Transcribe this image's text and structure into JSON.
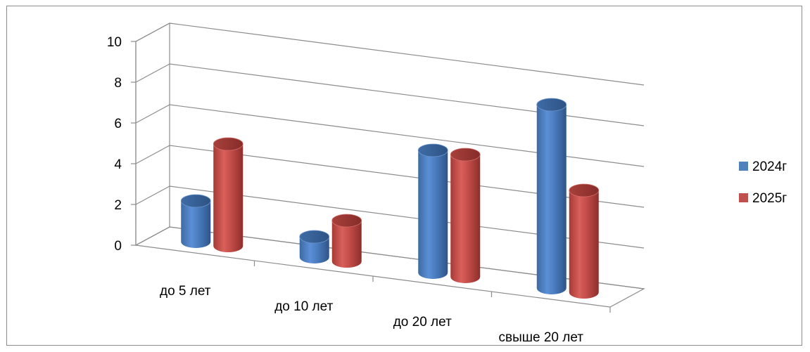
{
  "chart_data": {
    "type": "bar",
    "categories": [
      "до 5 лет",
      "до 10 лет",
      "до 20 лет",
      "свыше 20 лет"
    ],
    "series": [
      {
        "name": "2024г",
        "values": [
          2,
          1,
          6,
          9
        ],
        "color": "#4f81bd"
      },
      {
        "name": "2025г",
        "values": [
          5,
          2,
          6,
          5
        ],
        "color": "#c0504d"
      }
    ],
    "ylim": [
      0,
      10
    ],
    "yticks": [
      0,
      2,
      4,
      6,
      8,
      10
    ],
    "grid": true,
    "legend_position": "right",
    "style": "3d-cylinder"
  }
}
